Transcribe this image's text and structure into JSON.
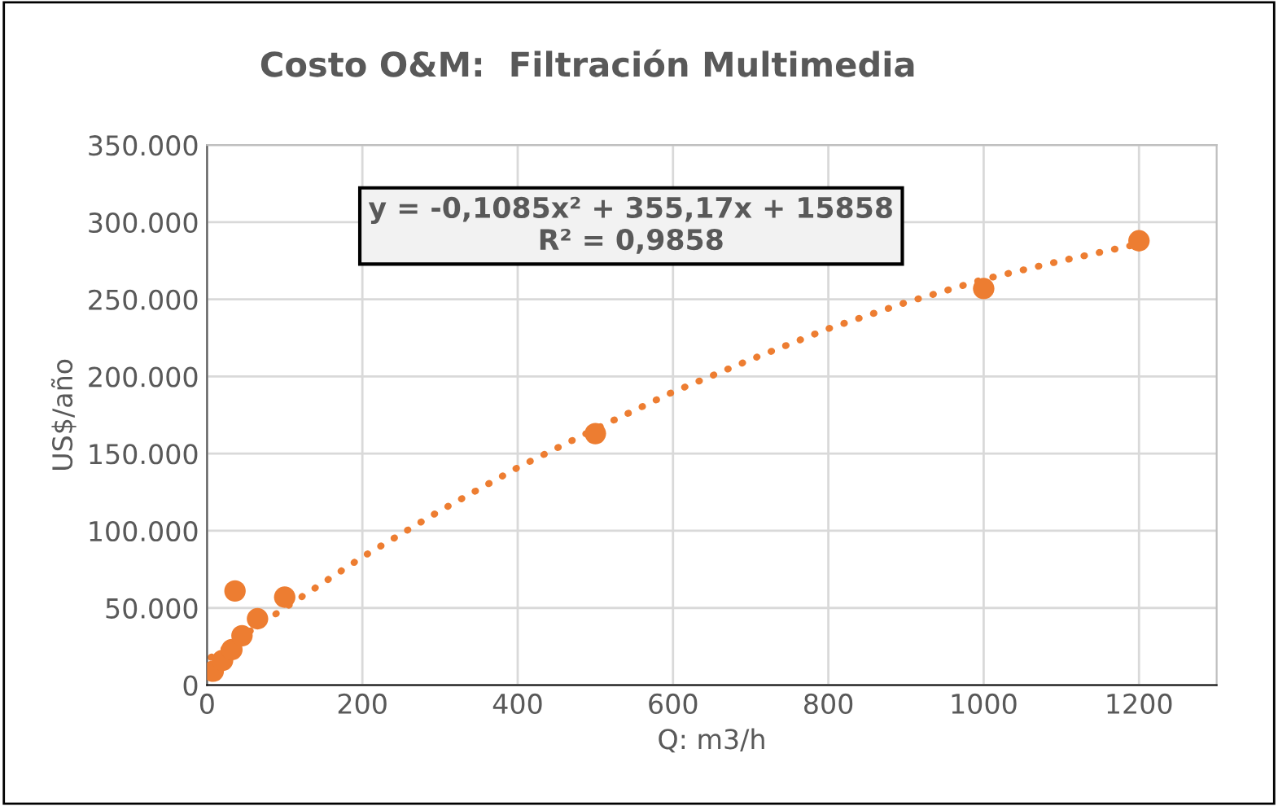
{
  "chart_data": {
    "type": "scatter",
    "title": "Costo O&M:  Filtración Multimedia",
    "xlabel": "Q: m3/h",
    "ylabel": "US$/año",
    "xlim": [
      0,
      1300
    ],
    "xticks": [
      0,
      200,
      400,
      600,
      800,
      1000,
      1200
    ],
    "ylim": [
      0,
      350000
    ],
    "yticks": [
      {
        "value": 0,
        "label": "0"
      },
      {
        "value": 50000,
        "label": "50.000"
      },
      {
        "value": 100000,
        "label": "100.000"
      },
      {
        "value": 150000,
        "label": "150.000"
      },
      {
        "value": 200000,
        "label": "200.000"
      },
      {
        "value": 250000,
        "label": "250.000"
      },
      {
        "value": 300000,
        "label": "300.000"
      },
      {
        "value": 350000,
        "label": "350.000"
      }
    ],
    "grid": true,
    "marker": "circle",
    "series": [
      {
        "color": "#ed7d31",
        "x": [
          8,
          20,
          32,
          36,
          45,
          65,
          100,
          500,
          1000,
          1200
        ],
        "values": [
          9000,
          16000,
          23000,
          61000,
          32000,
          43000,
          57000,
          163000,
          257000,
          288000
        ]
      },
      {
        "type": "line",
        "color": "#ed7d31",
        "line_style": "dotted",
        "marker": "none",
        "x": [
          5,
          100,
          200,
          300,
          400,
          500,
          600,
          700,
          800,
          900,
          1000,
          1100,
          1200
        ],
        "values": [
          18000,
          50000,
          83000,
          113000,
          141000,
          166000,
          190000,
          211000,
          231000,
          248000,
          263000,
          275000,
          286000
        ]
      }
    ],
    "annotations": [
      "y = -0,1085x² + 355,17x + 15858\nR² = 0,9858"
    ]
  }
}
